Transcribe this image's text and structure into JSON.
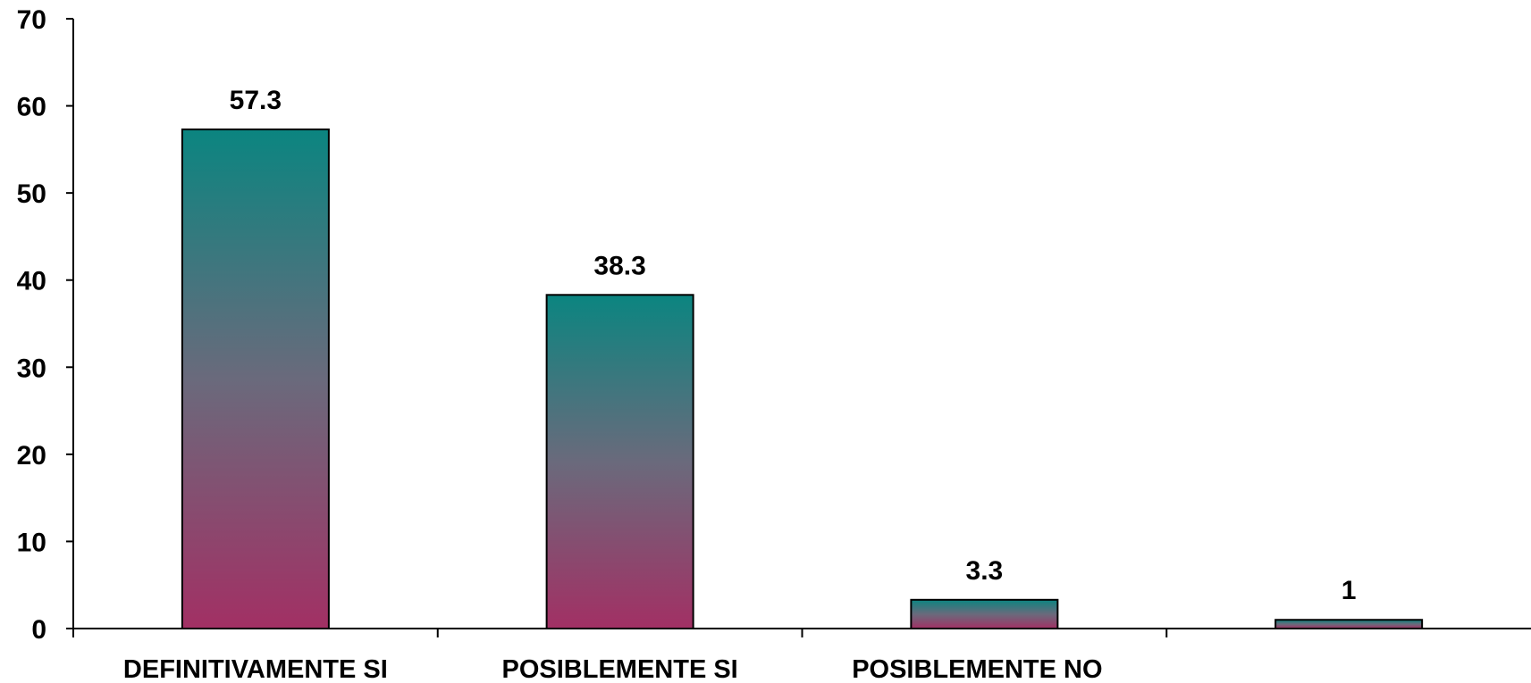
{
  "chart_data": {
    "type": "bar",
    "title": "",
    "xlabel": "",
    "ylabel": "",
    "categories": [
      "DEFINITIVAMENTE SI",
      "POSIBLEMENTE SI",
      "POSIBLEMENTE NO",
      ""
    ],
    "values": [
      57.3,
      38.3,
      3.3,
      1
    ],
    "data_labels": [
      "57.3",
      "38.3",
      "3.3",
      "1"
    ],
    "ylim": [
      0,
      70
    ],
    "yticks": [
      "0",
      "10",
      "20",
      "30",
      "40",
      "50",
      "60",
      "70"
    ],
    "grid": false,
    "legend": "none",
    "colors": {
      "bar_top": "#0b8580",
      "bar_mid": "#6a6a7c",
      "bar_bottom": "#a23064",
      "outline": "#000000",
      "axis": "#000000"
    }
  }
}
